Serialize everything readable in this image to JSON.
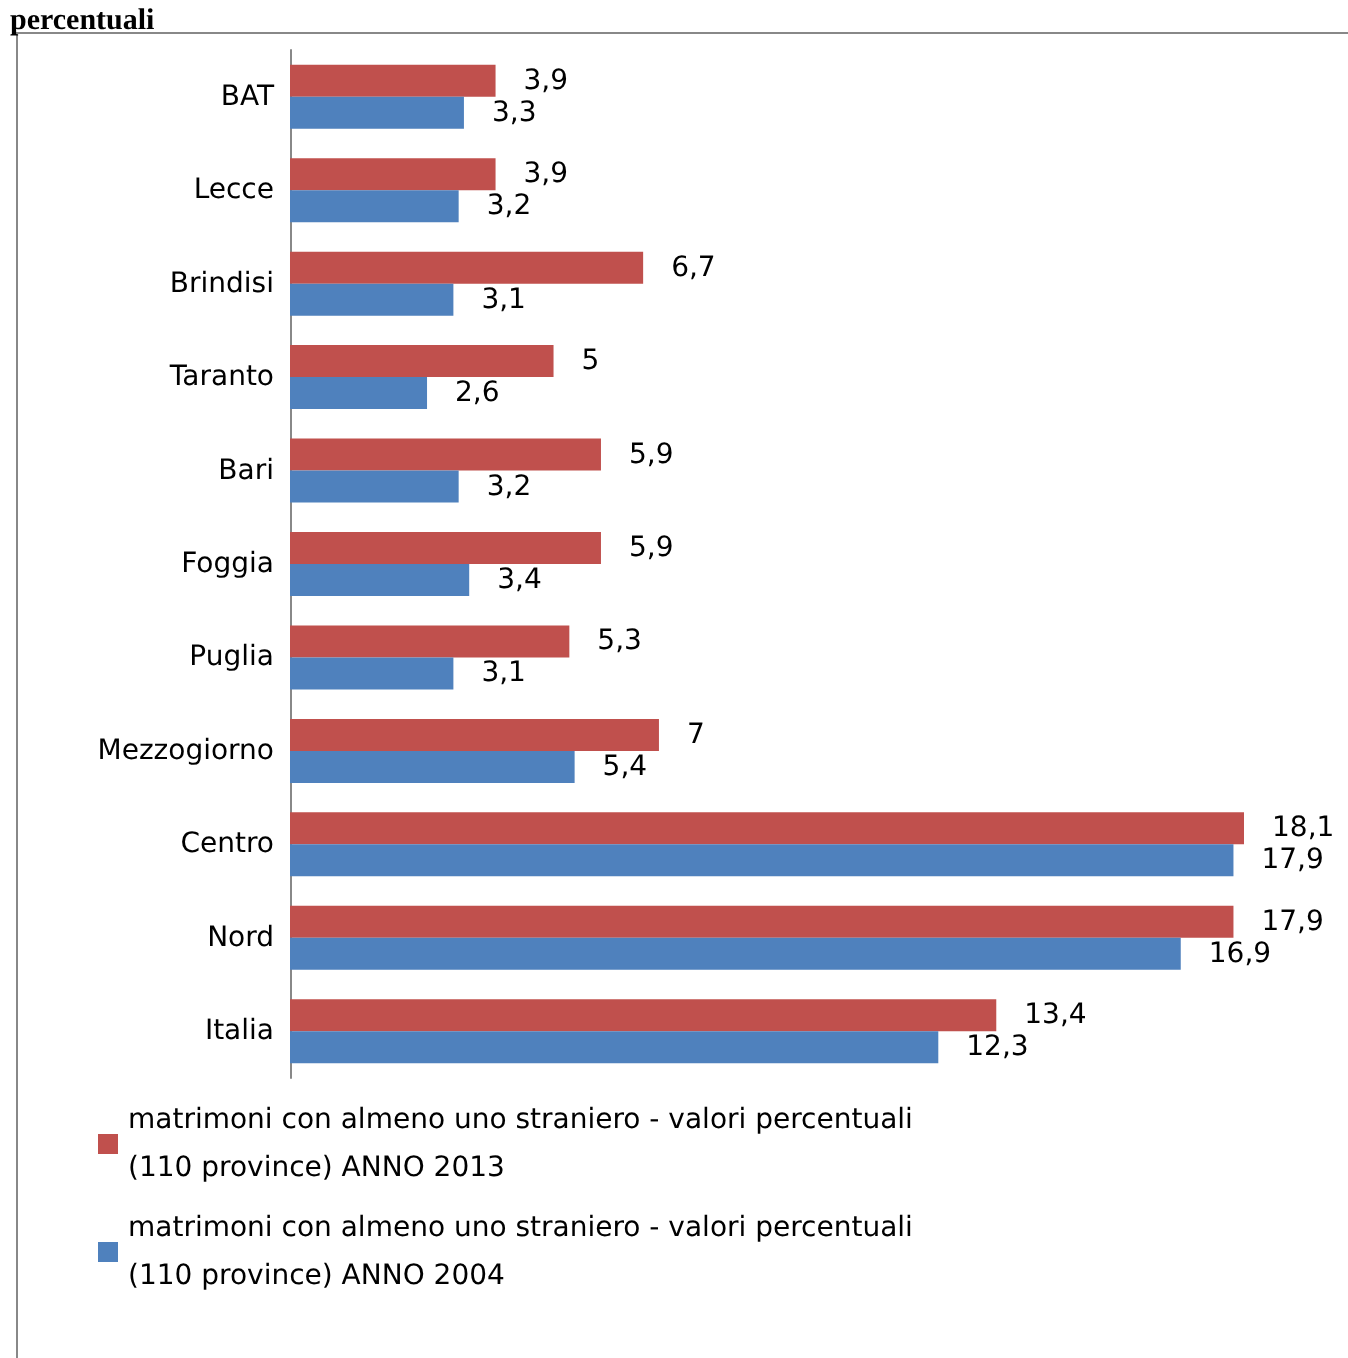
{
  "chart_data": {
    "type": "bar",
    "orientation": "horizontal",
    "title": "percentuali",
    "categories": [
      "BAT",
      "Lecce",
      "Brindisi",
      "Taranto",
      "Bari",
      "Foggia",
      "Puglia",
      "Mezzogiorno",
      "Centro",
      "Nord",
      "Italia"
    ],
    "series": [
      {
        "name": "matrimoni con almeno uno straniero - valori percentuali (110 province) ANNO 2013",
        "color": "#c0504d",
        "values": [
          3.9,
          3.9,
          6.7,
          5,
          5.9,
          5.9,
          5.3,
          7,
          18.1,
          17.9,
          13.4
        ],
        "value_labels": [
          "3,9",
          "3,9",
          "6,7",
          "5",
          "5,9",
          "5,9",
          "5,3",
          "7",
          "18,1",
          "17,9",
          "13,4"
        ]
      },
      {
        "name": "matrimoni con almeno uno straniero - valori percentuali (110 province) ANNO 2004",
        "color": "#4f81bd",
        "values": [
          3.3,
          3.2,
          3.1,
          2.6,
          3.2,
          3.4,
          3.1,
          5.4,
          17.9,
          16.9,
          12.3
        ],
        "value_labels": [
          "3,3",
          "3,2",
          "3,1",
          "2,6",
          "3,2",
          "3,4",
          "3,1",
          "5,4",
          "17,9",
          "16,9",
          "12,3"
        ]
      }
    ],
    "legend": "bottom left"
  }
}
